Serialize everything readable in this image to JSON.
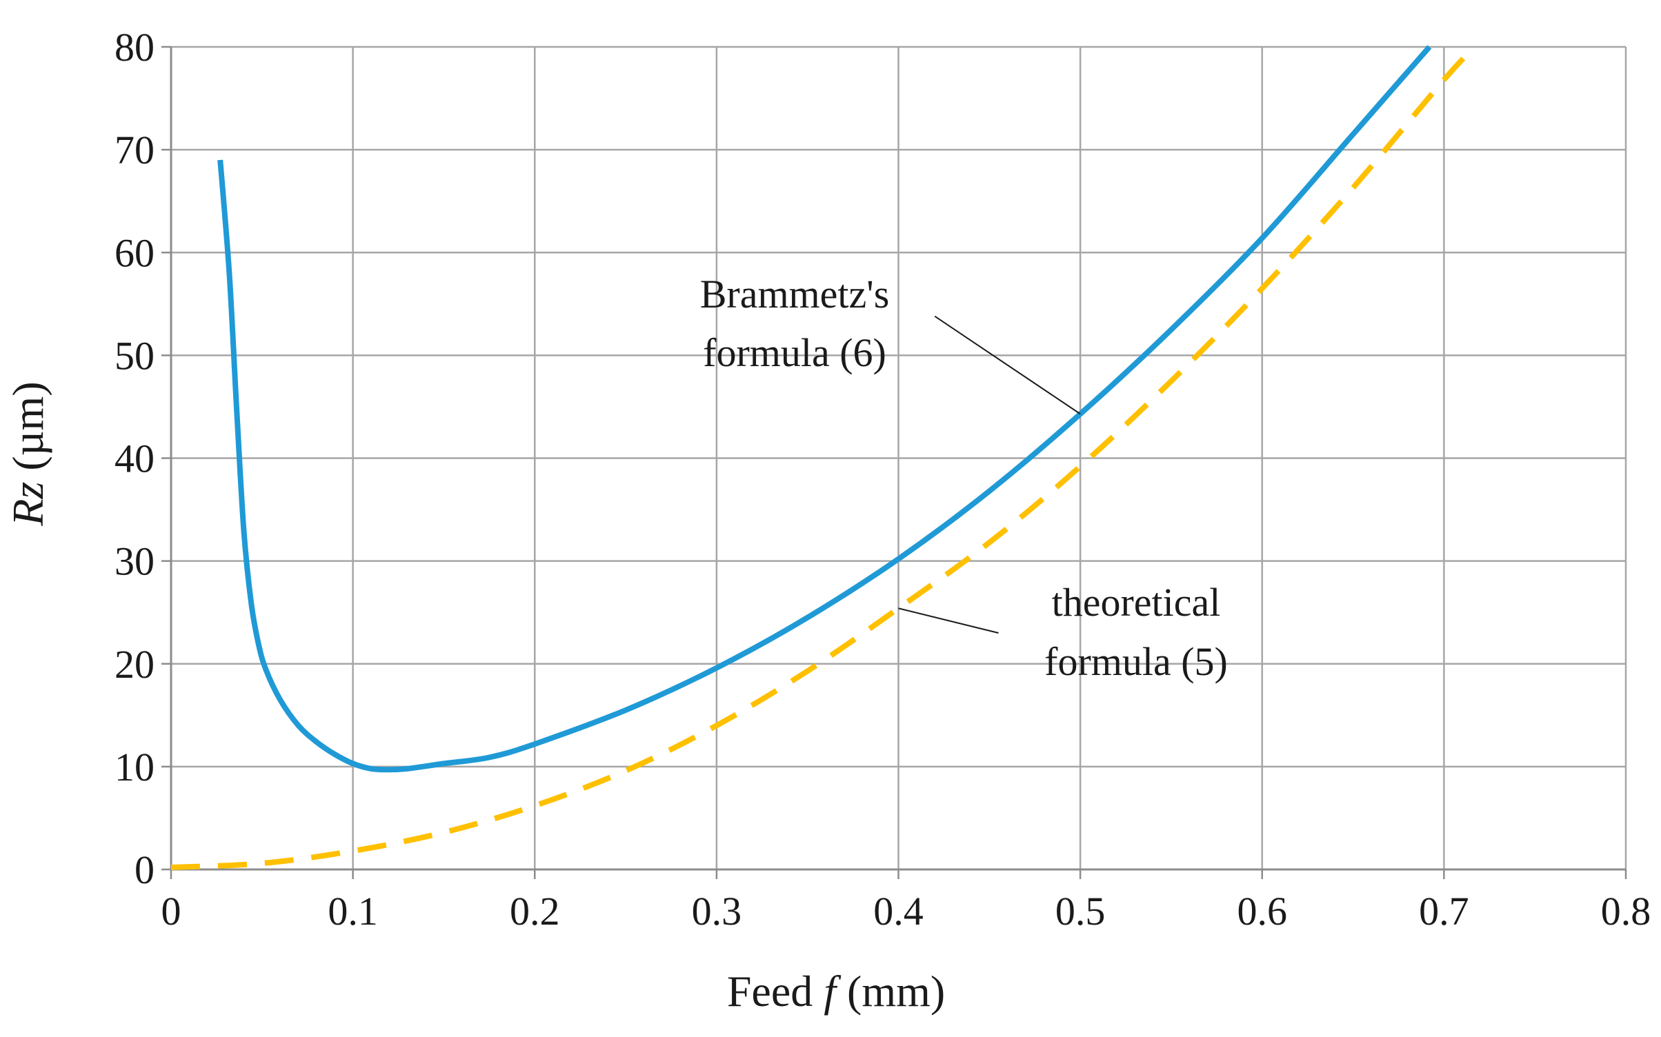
{
  "chart_data": {
    "type": "line",
    "title": "",
    "xlabel": {
      "prefix": "Feed ",
      "var": "f",
      "suffix": " (mm)"
    },
    "ylabel": {
      "var": "Rz",
      "suffix": " (µm)"
    },
    "xlim": [
      0,
      0.8
    ],
    "ylim": [
      0,
      80
    ],
    "x_ticks": [
      "0",
      "0.1",
      "0.2",
      "0.3",
      "0.4",
      "0.5",
      "0.6",
      "0.7",
      "0.8"
    ],
    "y_ticks": [
      "0",
      "10",
      "20",
      "30",
      "40",
      "50",
      "60",
      "70",
      "80"
    ],
    "grid": true,
    "series": [
      {
        "name": "Brammetz's formula (6)",
        "style": "solid",
        "color": "#1f9ad6",
        "x": [
          0.027,
          0.032,
          0.036,
          0.04,
          0.044,
          0.048,
          0.052,
          0.06,
          0.07,
          0.08,
          0.09,
          0.1,
          0.11,
          0.12,
          0.13,
          0.15,
          0.175,
          0.2,
          0.25,
          0.3,
          0.35,
          0.4,
          0.45,
          0.5,
          0.55,
          0.6,
          0.65,
          0.692
        ],
        "values": [
          69,
          58,
          45,
          33,
          26,
          22,
          19.5,
          16.5,
          14,
          12.4,
          11.2,
          10.3,
          9.8,
          9.7,
          9.8,
          10.3,
          10.9,
          12.2,
          15.5,
          19.6,
          24.5,
          30.2,
          36.8,
          44.3,
          52.5,
          61.4,
          71.5,
          80
        ]
      },
      {
        "name": "theoretical formula (5)",
        "style": "dashed",
        "color": "#ffc000",
        "x": [
          0,
          0.05,
          0.1,
          0.15,
          0.2,
          0.25,
          0.3,
          0.35,
          0.4,
          0.45,
          0.5,
          0.55,
          0.6,
          0.65,
          0.7,
          0.717
        ],
        "values": [
          0.2,
          0.6,
          1.8,
          3.6,
          6.2,
          9.6,
          14.0,
          19.3,
          25.4,
          31.8,
          39.2,
          47.5,
          56.5,
          66.3,
          76.8,
          80
        ]
      }
    ],
    "annotations": [
      {
        "series": 0,
        "lines": [
          "Brammetz's",
          "formula (6)"
        ],
        "leader_from": [
          0.42,
          53.8
        ],
        "leader_to": [
          0.5,
          44.3
        ]
      },
      {
        "series": 1,
        "lines": [
          "theoretical",
          "formula (5)"
        ],
        "leader_from": [
          0.455,
          23.0
        ],
        "leader_to": [
          0.4,
          25.4
        ]
      }
    ]
  }
}
